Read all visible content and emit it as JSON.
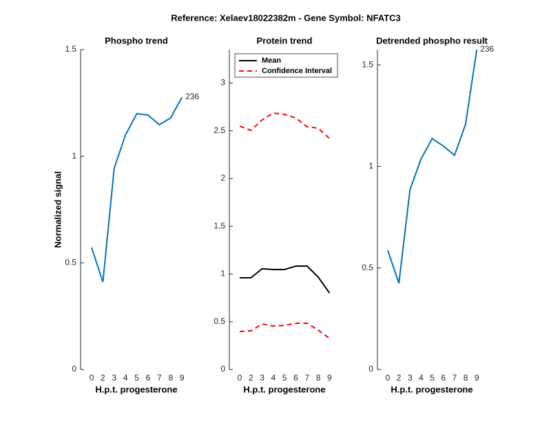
{
  "title": "Reference:  Xelaev18022382m - Gene Symbol:  NFATC3",
  "chart_data": [
    {
      "type": "line",
      "title": "Phospho trend",
      "x_label": "H.p.t. progesterone",
      "y_label": "Normalized signal",
      "categories": [
        "0",
        "2",
        "3",
        "4",
        "5",
        "6",
        "7",
        "8",
        "9"
      ],
      "series": [
        {
          "name": "236",
          "color": "#0072bd",
          "values": [
            0.572,
            0.41,
            0.944,
            1.1,
            1.2,
            1.193,
            1.148,
            1.18,
            1.277
          ]
        }
      ],
      "ylim": [
        0,
        1.5
      ],
      "yticks": [
        0,
        0.5,
        1,
        1.5
      ]
    },
    {
      "type": "line",
      "title": "Protein trend",
      "x_label": "H.p.t. progesterone",
      "categories": [
        "0",
        "2",
        "3",
        "4",
        "5",
        "6",
        "7",
        "8",
        "9"
      ],
      "series": [
        {
          "name": "Mean",
          "color": "#000000",
          "values": [
            0.96,
            0.96,
            1.055,
            1.047,
            1.047,
            1.083,
            1.083,
            0.967,
            0.8
          ]
        },
        {
          "name": "Confidence Interval",
          "color": "#ff0000",
          "dashed": true,
          "values": [
            2.549,
            2.505,
            2.614,
            2.686,
            2.672,
            2.635,
            2.542,
            2.527,
            2.419
          ],
          "lower": [
            0.397,
            0.404,
            0.477,
            0.455,
            0.462,
            0.484,
            0.484,
            0.412,
            0.325
          ]
        }
      ],
      "ylim": [
        0,
        3.35
      ],
      "yticks": [
        0,
        0.5,
        1,
        1.5,
        2,
        2.5,
        3
      ],
      "legend": "upper left"
    },
    {
      "type": "line",
      "title": "Detrended phospho result",
      "x_label": "H.p.t. progesterone",
      "categories": [
        "0",
        "2",
        "3",
        "4",
        "5",
        "6",
        "7",
        "8",
        "9"
      ],
      "series": [
        {
          "name": "236",
          "color": "#0072bd",
          "values": [
            0.587,
            0.424,
            0.886,
            1.038,
            1.137,
            1.1,
            1.055,
            1.208,
            1.575
          ]
        }
      ],
      "ylim": [
        0,
        1.575
      ],
      "yticks": [
        0,
        0.5,
        1,
        1.5
      ]
    }
  ]
}
